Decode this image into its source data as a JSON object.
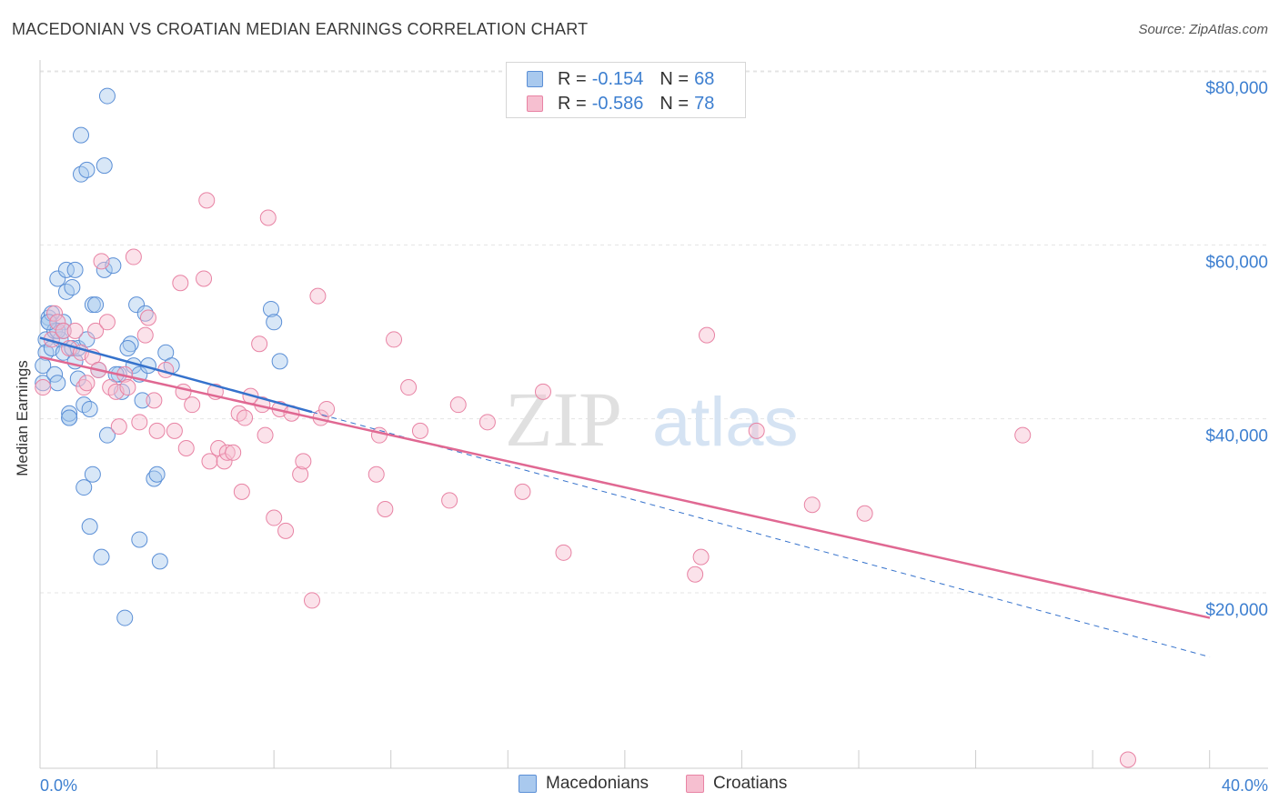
{
  "title": "MACEDONIAN VS CROATIAN MEDIAN EARNINGS CORRELATION CHART",
  "source": "Source: ZipAtlas.com",
  "watermark": {
    "zip": "ZIP",
    "atlas": "atlas"
  },
  "legend": {
    "rows": [
      {
        "r_label": "R =",
        "r_value": "-0.154",
        "n_label": "N =",
        "n_value": "68"
      },
      {
        "r_label": "R =",
        "r_value": "-0.586",
        "n_label": "N =",
        "n_value": "78"
      }
    ]
  },
  "bottom_legend": [
    "Macedonians",
    "Croatians"
  ],
  "colors": {
    "macedonians_fill": "#a9c9ee",
    "macedonians_stroke": "#5b8fd6",
    "macedonians_line": "#3572cc",
    "croatians_fill": "#f6bfd0",
    "croatians_stroke": "#e883a4",
    "croatians_line": "#e06892",
    "tick_text": "#3d7fd0",
    "grid": "#e4e4e4"
  },
  "chart_data": {
    "type": "scatter",
    "title": "MACEDONIAN VS CROATIAN MEDIAN EARNINGS CORRELATION CHART",
    "xlabel": "",
    "ylabel": "Median Earnings",
    "xlim": [
      0,
      40
    ],
    "ylim": [
      2000,
      82000
    ],
    "x_tick_labels": [
      "0.0%",
      "40.0%"
    ],
    "y_ticks": [
      {
        "value": 80000,
        "label": "$80,000"
      },
      {
        "value": 60000,
        "label": "$60,000"
      },
      {
        "value": 40000,
        "label": "$40,000"
      },
      {
        "value": 20000,
        "label": "$20,000"
      }
    ],
    "series": [
      {
        "name": "Macedonians",
        "r": -0.154,
        "n": 68,
        "trend": {
          "x0": 0,
          "y0": 51200,
          "x1": 40,
          "y1": 14500,
          "solid_until_x": 9.3
        },
        "points": [
          [
            0.2,
            51
          ],
          [
            0.3,
            53.5
          ],
          [
            0.2,
            49.5
          ],
          [
            0.1,
            48
          ],
          [
            0.1,
            46
          ],
          [
            0.3,
            53
          ],
          [
            0.4,
            50
          ],
          [
            0.5,
            47
          ],
          [
            0.6,
            46
          ],
          [
            0.5,
            52
          ],
          [
            0.6,
            58
          ],
          [
            0.7,
            51
          ],
          [
            0.8,
            53
          ],
          [
            0.8,
            49.5
          ],
          [
            0.9,
            59
          ],
          [
            1.0,
            42
          ],
          [
            0.9,
            56.5
          ],
          [
            1.0,
            42.5
          ],
          [
            1.1,
            57
          ],
          [
            1.1,
            50
          ],
          [
            1.2,
            48.5
          ],
          [
            1.2,
            59
          ],
          [
            1.3,
            50
          ],
          [
            1.3,
            46.5
          ],
          [
            1.4,
            70
          ],
          [
            1.4,
            74.5
          ],
          [
            1.5,
            43.5
          ],
          [
            1.6,
            70.5
          ],
          [
            1.6,
            51
          ],
          [
            1.7,
            43
          ],
          [
            1.7,
            29.5
          ],
          [
            1.8,
            35.5
          ],
          [
            1.8,
            55
          ],
          [
            1.9,
            55
          ],
          [
            2.0,
            47.5
          ],
          [
            2.1,
            26
          ],
          [
            2.2,
            71
          ],
          [
            2.2,
            59
          ],
          [
            2.3,
            40
          ],
          [
            2.3,
            79
          ],
          [
            2.5,
            59.5
          ],
          [
            2.8,
            45
          ],
          [
            2.9,
            19
          ],
          [
            3.1,
            50.5
          ],
          [
            3.2,
            48
          ],
          [
            3.3,
            55
          ],
          [
            3.4,
            28
          ],
          [
            3.4,
            47
          ],
          [
            3.5,
            44
          ],
          [
            3.6,
            54
          ],
          [
            3.7,
            48
          ],
          [
            3.9,
            35
          ],
          [
            4.0,
            35.5
          ],
          [
            4.1,
            25.5
          ],
          [
            4.3,
            49.5
          ],
          [
            4.5,
            48
          ],
          [
            7.9,
            54.5
          ],
          [
            8.0,
            53
          ],
          [
            8.2,
            48.5
          ],
          [
            0.4,
            54
          ],
          [
            0.6,
            52
          ],
          [
            1.5,
            34
          ],
          [
            2.7,
            47
          ],
          [
            1.0,
            42
          ],
          [
            0.3,
            53
          ],
          [
            0.8,
            52
          ],
          [
            2.6,
            47
          ],
          [
            3.0,
            50
          ]
        ]
      },
      {
        "name": "Croatians",
        "r": -0.586,
        "n": 78,
        "trend": {
          "x0": 0,
          "y0": 49000,
          "x1": 40,
          "y1": 19000
        },
        "points": [
          [
            0.1,
            45.5
          ],
          [
            0.4,
            51
          ],
          [
            0.5,
            54
          ],
          [
            0.6,
            53
          ],
          [
            0.8,
            52
          ],
          [
            1.0,
            50
          ],
          [
            1.2,
            52
          ],
          [
            1.4,
            49.5
          ],
          [
            1.5,
            45.5
          ],
          [
            1.6,
            46
          ],
          [
            1.8,
            49
          ],
          [
            1.9,
            52
          ],
          [
            2.0,
            47.5
          ],
          [
            2.1,
            60
          ],
          [
            2.3,
            53
          ],
          [
            2.4,
            45.5
          ],
          [
            2.6,
            45
          ],
          [
            2.7,
            41
          ],
          [
            2.9,
            47
          ],
          [
            3.0,
            45.5
          ],
          [
            3.2,
            60.5
          ],
          [
            3.4,
            41.5
          ],
          [
            3.6,
            51.5
          ],
          [
            3.7,
            53.5
          ],
          [
            3.9,
            44
          ],
          [
            4.0,
            40.5
          ],
          [
            4.3,
            47.5
          ],
          [
            4.6,
            40.5
          ],
          [
            4.8,
            57.5
          ],
          [
            4.9,
            45
          ],
          [
            5.0,
            38.5
          ],
          [
            5.2,
            43.5
          ],
          [
            5.6,
            58
          ],
          [
            5.7,
            67
          ],
          [
            5.8,
            37
          ],
          [
            6.0,
            45
          ],
          [
            6.1,
            38.5
          ],
          [
            6.3,
            37
          ],
          [
            6.4,
            38
          ],
          [
            6.6,
            38
          ],
          [
            6.8,
            42.5
          ],
          [
            6.9,
            33.5
          ],
          [
            7.0,
            42
          ],
          [
            7.2,
            44.5
          ],
          [
            7.5,
            50.5
          ],
          [
            7.6,
            43.5
          ],
          [
            7.7,
            40
          ],
          [
            7.8,
            65
          ],
          [
            8.0,
            30.5
          ],
          [
            8.2,
            43
          ],
          [
            8.4,
            29
          ],
          [
            8.6,
            42.5
          ],
          [
            8.9,
            35.5
          ],
          [
            9.0,
            37
          ],
          [
            9.3,
            21
          ],
          [
            9.5,
            56
          ],
          [
            9.6,
            42
          ],
          [
            9.8,
            43
          ],
          [
            11.5,
            35.5
          ],
          [
            11.6,
            40
          ],
          [
            11.8,
            31.5
          ],
          [
            12.1,
            51
          ],
          [
            12.6,
            45.5
          ],
          [
            13.0,
            40.5
          ],
          [
            14.0,
            32.5
          ],
          [
            14.3,
            43.5
          ],
          [
            15.3,
            41.5
          ],
          [
            16.5,
            33.5
          ],
          [
            17.2,
            45
          ],
          [
            17.9,
            26.5
          ],
          [
            22.4,
            24
          ],
          [
            22.6,
            26
          ],
          [
            22.8,
            51.5
          ],
          [
            24.5,
            40.5
          ],
          [
            26.4,
            32
          ],
          [
            28.2,
            31
          ],
          [
            33.6,
            40
          ],
          [
            37.2,
            2.7
          ]
        ]
      }
    ]
  }
}
